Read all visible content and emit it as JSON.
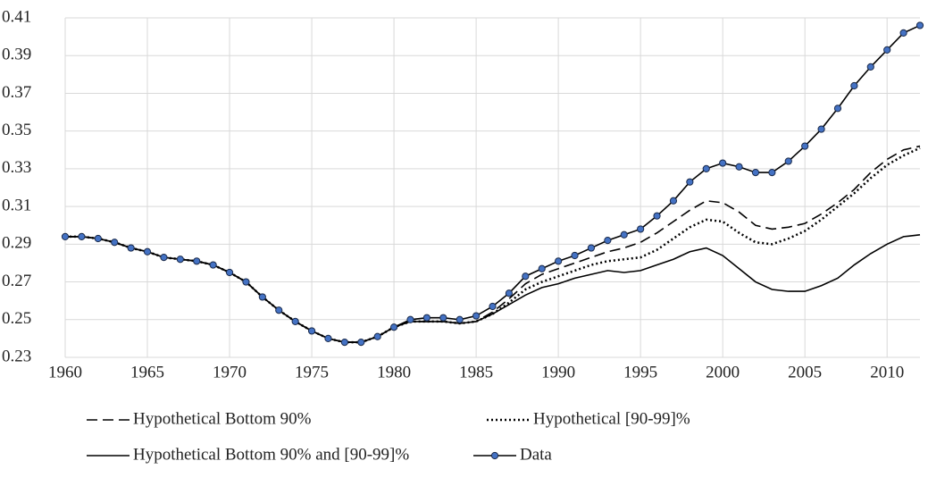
{
  "chart_data": {
    "type": "line",
    "x": [
      1960,
      1961,
      1962,
      1963,
      1964,
      1965,
      1966,
      1967,
      1968,
      1969,
      1970,
      1971,
      1972,
      1973,
      1974,
      1975,
      1976,
      1977,
      1978,
      1979,
      1980,
      1981,
      1982,
      1983,
      1984,
      1985,
      1986,
      1987,
      1988,
      1989,
      1990,
      1991,
      1992,
      1993,
      1994,
      1995,
      1996,
      1997,
      1998,
      1999,
      2000,
      2001,
      2002,
      2003,
      2004,
      2005,
      2006,
      2007,
      2008,
      2009,
      2010,
      2011,
      2012
    ],
    "xlim": [
      1960,
      2012
    ],
    "xticks": [
      1960,
      1965,
      1970,
      1975,
      1980,
      1985,
      1990,
      1995,
      2000,
      2005,
      2010
    ],
    "ylim": [
      0.23,
      0.41
    ],
    "yticks": [
      0.23,
      0.25,
      0.27,
      0.29,
      0.31,
      0.33,
      0.35,
      0.37,
      0.39,
      0.41
    ],
    "grid": true,
    "series": [
      {
        "name": "Hypothetical Bottom 90%",
        "color": "#000000",
        "line_style": "dashed",
        "marker": false,
        "values": [
          0.294,
          0.294,
          0.293,
          0.291,
          0.288,
          0.286,
          0.283,
          0.282,
          0.281,
          0.279,
          0.275,
          0.27,
          0.262,
          0.255,
          0.249,
          0.244,
          0.24,
          0.238,
          0.238,
          0.241,
          0.246,
          0.249,
          0.249,
          0.249,
          0.248,
          0.249,
          0.254,
          0.261,
          0.269,
          0.274,
          0.277,
          0.28,
          0.283,
          0.286,
          0.288,
          0.291,
          0.296,
          0.302,
          0.308,
          0.313,
          0.312,
          0.307,
          0.3,
          0.298,
          0.299,
          0.301,
          0.306,
          0.312,
          0.319,
          0.328,
          0.335,
          0.34,
          0.342
        ]
      },
      {
        "name": "Hypothetical [90-99]%",
        "color": "#000000",
        "line_style": "dotted",
        "marker": false,
        "values": [
          0.294,
          0.294,
          0.293,
          0.291,
          0.288,
          0.286,
          0.283,
          0.282,
          0.281,
          0.279,
          0.275,
          0.27,
          0.262,
          0.255,
          0.249,
          0.244,
          0.24,
          0.238,
          0.238,
          0.241,
          0.246,
          0.249,
          0.249,
          0.249,
          0.248,
          0.249,
          0.253,
          0.259,
          0.266,
          0.27,
          0.273,
          0.276,
          0.279,
          0.281,
          0.282,
          0.283,
          0.287,
          0.293,
          0.299,
          0.303,
          0.302,
          0.296,
          0.291,
          0.29,
          0.293,
          0.297,
          0.303,
          0.31,
          0.317,
          0.325,
          0.332,
          0.337,
          0.341
        ]
      },
      {
        "name": "Hypothetical Bottom 90% and [90-99]%",
        "color": "#000000",
        "line_style": "solid",
        "marker": false,
        "values": [
          0.294,
          0.294,
          0.293,
          0.291,
          0.288,
          0.286,
          0.283,
          0.282,
          0.281,
          0.279,
          0.275,
          0.27,
          0.262,
          0.255,
          0.249,
          0.244,
          0.24,
          0.238,
          0.238,
          0.241,
          0.246,
          0.249,
          0.249,
          0.249,
          0.248,
          0.249,
          0.253,
          0.258,
          0.263,
          0.267,
          0.269,
          0.272,
          0.274,
          0.276,
          0.275,
          0.276,
          0.279,
          0.282,
          0.286,
          0.288,
          0.284,
          0.277,
          0.27,
          0.266,
          0.265,
          0.265,
          0.268,
          0.272,
          0.279,
          0.285,
          0.29,
          0.294,
          0.295
        ]
      },
      {
        "name": "Data",
        "color": "#000000",
        "marker_color": "#4472c4",
        "line_style": "solid",
        "marker": true,
        "values": [
          0.294,
          0.294,
          0.293,
          0.291,
          0.288,
          0.286,
          0.283,
          0.282,
          0.281,
          0.279,
          0.275,
          0.27,
          0.262,
          0.255,
          0.249,
          0.244,
          0.24,
          0.238,
          0.238,
          0.241,
          0.246,
          0.25,
          0.251,
          0.251,
          0.25,
          0.252,
          0.257,
          0.264,
          0.273,
          0.277,
          0.281,
          0.284,
          0.288,
          0.292,
          0.295,
          0.298,
          0.305,
          0.313,
          0.323,
          0.33,
          0.333,
          0.331,
          0.328,
          0.328,
          0.334,
          0.342,
          0.351,
          0.362,
          0.374,
          0.384,
          0.393,
          0.402,
          0.406
        ]
      }
    ]
  }
}
